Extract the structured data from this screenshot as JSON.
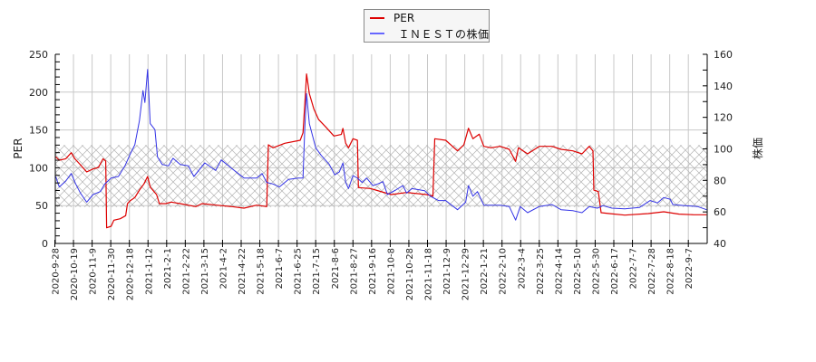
{
  "legend": {
    "items": [
      {
        "label": "PER",
        "color": "#dd0000"
      },
      {
        "label": "　ＩＮＥＳＴの株価",
        "color": "#6666ff"
      }
    ]
  },
  "chart_data": {
    "type": "line",
    "title": "",
    "xlabel": "",
    "ylabel_left": "PER",
    "ylabel_right": "株価",
    "ylim_left": [
      0,
      250
    ],
    "ylim_right": [
      40,
      160
    ],
    "yticks_left": [
      0,
      50,
      100,
      150,
      200,
      250
    ],
    "yticks_right": [
      40,
      60,
      80,
      100,
      120,
      140,
      160
    ],
    "grid": true,
    "legend_position": "top-center",
    "x_unit": "tick-interval index (0 = first date label)",
    "x_tick_labels": [
      "2020-9-28",
      "2020-10-19",
      "2020-11-9",
      "2020-11-30",
      "2020-12-18",
      "2021-1-12",
      "2021-2-1",
      "2021-2-22",
      "2021-3-15",
      "2021-4-2",
      "2021-4-22",
      "2021-5-18",
      "2021-6-7",
      "2021-6-25",
      "2021-7-15",
      "2021-8-6",
      "2021-8-27",
      "2021-9-16",
      "2021-10-8",
      "2021-10-28",
      "2021-11-18",
      "2021-12-9",
      "2021-12-29",
      "2022-1-21",
      "2022-2-10",
      "2022-3-4",
      "2022-3-25",
      "2022-4-14",
      "2022-5-10",
      "2022-5-30",
      "2022-6-17",
      "2022-7-7",
      "2022-7-28",
      "2022-8-18",
      "2022-9-7"
    ],
    "band": {
      "axis": "left",
      "from": 48,
      "to": 130,
      "style": "crosshatch"
    },
    "series": [
      {
        "name": "PER",
        "axis": "left",
        "color": "#dd0000",
        "points": [
          [
            0.05,
            114.5
          ],
          [
            0.24,
            110
          ],
          [
            0.59,
            112
          ],
          [
            0.88,
            120
          ],
          [
            1.07,
            112
          ],
          [
            1.37,
            104
          ],
          [
            1.71,
            94.5
          ],
          [
            2.05,
            98.5
          ],
          [
            2.34,
            100.5
          ],
          [
            2.59,
            112
          ],
          [
            2.73,
            109
          ],
          [
            2.78,
            20.7
          ],
          [
            3.02,
            22.7
          ],
          [
            3.17,
            30.7
          ],
          [
            3.51,
            32.7
          ],
          [
            3.8,
            36.7
          ],
          [
            3.9,
            52.6
          ],
          [
            4.05,
            56.6
          ],
          [
            4.29,
            60.6
          ],
          [
            4.54,
            70.6
          ],
          [
            4.78,
            78.6
          ],
          [
            4.98,
            88.5
          ],
          [
            5.12,
            74.5
          ],
          [
            5.46,
            64.6
          ],
          [
            5.61,
            52.6
          ],
          [
            5.95,
            52.6
          ],
          [
            6.24,
            54.7
          ],
          [
            6.73,
            52.6
          ],
          [
            7.56,
            48.7
          ],
          [
            7.9,
            52.6
          ],
          [
            8.68,
            50.6
          ],
          [
            9.51,
            48.7
          ],
          [
            10.15,
            46.7
          ],
          [
            10.83,
            50.6
          ],
          [
            11.37,
            48.7
          ],
          [
            11.46,
            130.4
          ],
          [
            11.71,
            126.4
          ],
          [
            12.34,
            132.4
          ],
          [
            13.17,
            136.4
          ],
          [
            13.32,
            146.3
          ],
          [
            13.46,
            202
          ],
          [
            13.51,
            224
          ],
          [
            13.66,
            198
          ],
          [
            13.9,
            178
          ],
          [
            14.15,
            164
          ],
          [
            14.54,
            154
          ],
          [
            14.98,
            142
          ],
          [
            15.37,
            144
          ],
          [
            15.46,
            152
          ],
          [
            15.61,
            132.4
          ],
          [
            15.76,
            126.4
          ],
          [
            16.0,
            138.4
          ],
          [
            16.24,
            136.4
          ],
          [
            16.29,
            73.8
          ],
          [
            16.93,
            72.6
          ],
          [
            17.22,
            70.6
          ],
          [
            18.05,
            64.6
          ],
          [
            18.88,
            67.3
          ],
          [
            19.95,
            64.6
          ],
          [
            20.29,
            62.6
          ],
          [
            20.39,
            138.4
          ],
          [
            20.98,
            136.4
          ],
          [
            21.61,
            122.4
          ],
          [
            21.95,
            130.4
          ],
          [
            22.2,
            152.3
          ],
          [
            22.44,
            138.4
          ],
          [
            22.78,
            144.4
          ],
          [
            23.02,
            128.3
          ],
          [
            23.41,
            126.4
          ],
          [
            23.9,
            128.3
          ],
          [
            24.39,
            124.4
          ],
          [
            24.73,
            108.5
          ],
          [
            24.88,
            126.4
          ],
          [
            25.37,
            118.4
          ],
          [
            26.0,
            128.3
          ],
          [
            26.68,
            128.3
          ],
          [
            27.17,
            124.4
          ],
          [
            27.8,
            122.4
          ],
          [
            28.29,
            118.4
          ],
          [
            28.68,
            128.3
          ],
          [
            28.88,
            122.4
          ],
          [
            28.93,
            70.6
          ],
          [
            29.17,
            68.5
          ],
          [
            29.32,
            40.7
          ],
          [
            29.76,
            39.5
          ],
          [
            30.59,
            37.5
          ],
          [
            31.85,
            39.5
          ],
          [
            32.68,
            41.9
          ],
          [
            33.51,
            38.7
          ],
          [
            34.29,
            37.9
          ],
          [
            34.98,
            37.9
          ]
        ]
      },
      {
        "name": "ＩＮＥＳＴの株価",
        "axis": "right",
        "color": "#3333e6",
        "points": [
          [
            0.05,
            82.5
          ],
          [
            0.24,
            75.8
          ],
          [
            0.59,
            79.6
          ],
          [
            0.88,
            84.4
          ],
          [
            1.12,
            77.7
          ],
          [
            1.37,
            72
          ],
          [
            1.71,
            66.2
          ],
          [
            2.05,
            71
          ],
          [
            2.44,
            72.9
          ],
          [
            2.68,
            77.7
          ],
          [
            3.02,
            81.5
          ],
          [
            3.41,
            82.5
          ],
          [
            3.76,
            89.2
          ],
          [
            4.05,
            96.8
          ],
          [
            4.29,
            102.6
          ],
          [
            4.54,
            117.9
          ],
          [
            4.73,
            137
          ],
          [
            4.83,
            129.4
          ],
          [
            4.98,
            150.4
          ],
          [
            5.12,
            116
          ],
          [
            5.37,
            112.2
          ],
          [
            5.51,
            94.9
          ],
          [
            5.76,
            90.1
          ],
          [
            6.1,
            89.2
          ],
          [
            6.34,
            94
          ],
          [
            6.73,
            90.1
          ],
          [
            7.17,
            89.2
          ],
          [
            7.46,
            82.5
          ],
          [
            8.05,
            91.1
          ],
          [
            8.63,
            86.3
          ],
          [
            8.93,
            93
          ],
          [
            9.51,
            87.4
          ],
          [
            10.15,
            81.5
          ],
          [
            10.83,
            81.5
          ],
          [
            11.12,
            84.4
          ],
          [
            11.37,
            78.7
          ],
          [
            11.71,
            77.7
          ],
          [
            12.05,
            75.8
          ],
          [
            12.54,
            80.6
          ],
          [
            13.07,
            81.5
          ],
          [
            13.32,
            81.5
          ],
          [
            13.41,
            112.2
          ],
          [
            13.51,
            135.1
          ],
          [
            13.66,
            116
          ],
          [
            14.0,
            100.7
          ],
          [
            14.29,
            95.9
          ],
          [
            14.73,
            90.1
          ],
          [
            15.02,
            83.5
          ],
          [
            15.27,
            85.4
          ],
          [
            15.46,
            91.1
          ],
          [
            15.61,
            78.7
          ],
          [
            15.76,
            74.8
          ],
          [
            16.0,
            83
          ],
          [
            16.24,
            81.5
          ],
          [
            16.49,
            78.7
          ],
          [
            16.73,
            81.5
          ],
          [
            17.07,
            76.7
          ],
          [
            17.32,
            77.7
          ],
          [
            17.61,
            79.2
          ],
          [
            17.85,
            71
          ],
          [
            18.29,
            73.9
          ],
          [
            18.68,
            76.7
          ],
          [
            18.88,
            72
          ],
          [
            19.17,
            74.8
          ],
          [
            19.85,
            73.5
          ],
          [
            20.15,
            70
          ],
          [
            20.59,
            67.2
          ],
          [
            20.98,
            67.2
          ],
          [
            21.61,
            61.4
          ],
          [
            22.05,
            66.2
          ],
          [
            22.2,
            76.7
          ],
          [
            22.44,
            70
          ],
          [
            22.68,
            72.9
          ],
          [
            23.02,
            64.3
          ],
          [
            23.41,
            64.3
          ],
          [
            23.9,
            64.3
          ],
          [
            24.39,
            63.4
          ],
          [
            24.73,
            54.8
          ],
          [
            24.98,
            63.4
          ],
          [
            25.37,
            59.5
          ],
          [
            26.0,
            63.4
          ],
          [
            26.68,
            64.7
          ],
          [
            27.17,
            61.4
          ],
          [
            27.8,
            60.8
          ],
          [
            28.29,
            59.5
          ],
          [
            28.68,
            63.4
          ],
          [
            29.12,
            62.4
          ],
          [
            29.41,
            64
          ],
          [
            29.9,
            62.4
          ],
          [
            30.59,
            62
          ],
          [
            31.37,
            62.8
          ],
          [
            31.95,
            67.2
          ],
          [
            32.34,
            65.7
          ],
          [
            32.68,
            69.1
          ],
          [
            33.02,
            68.1
          ],
          [
            33.17,
            64.7
          ],
          [
            33.8,
            64
          ],
          [
            34.49,
            63.4
          ],
          [
            34.98,
            61.4
          ]
        ]
      }
    ]
  }
}
